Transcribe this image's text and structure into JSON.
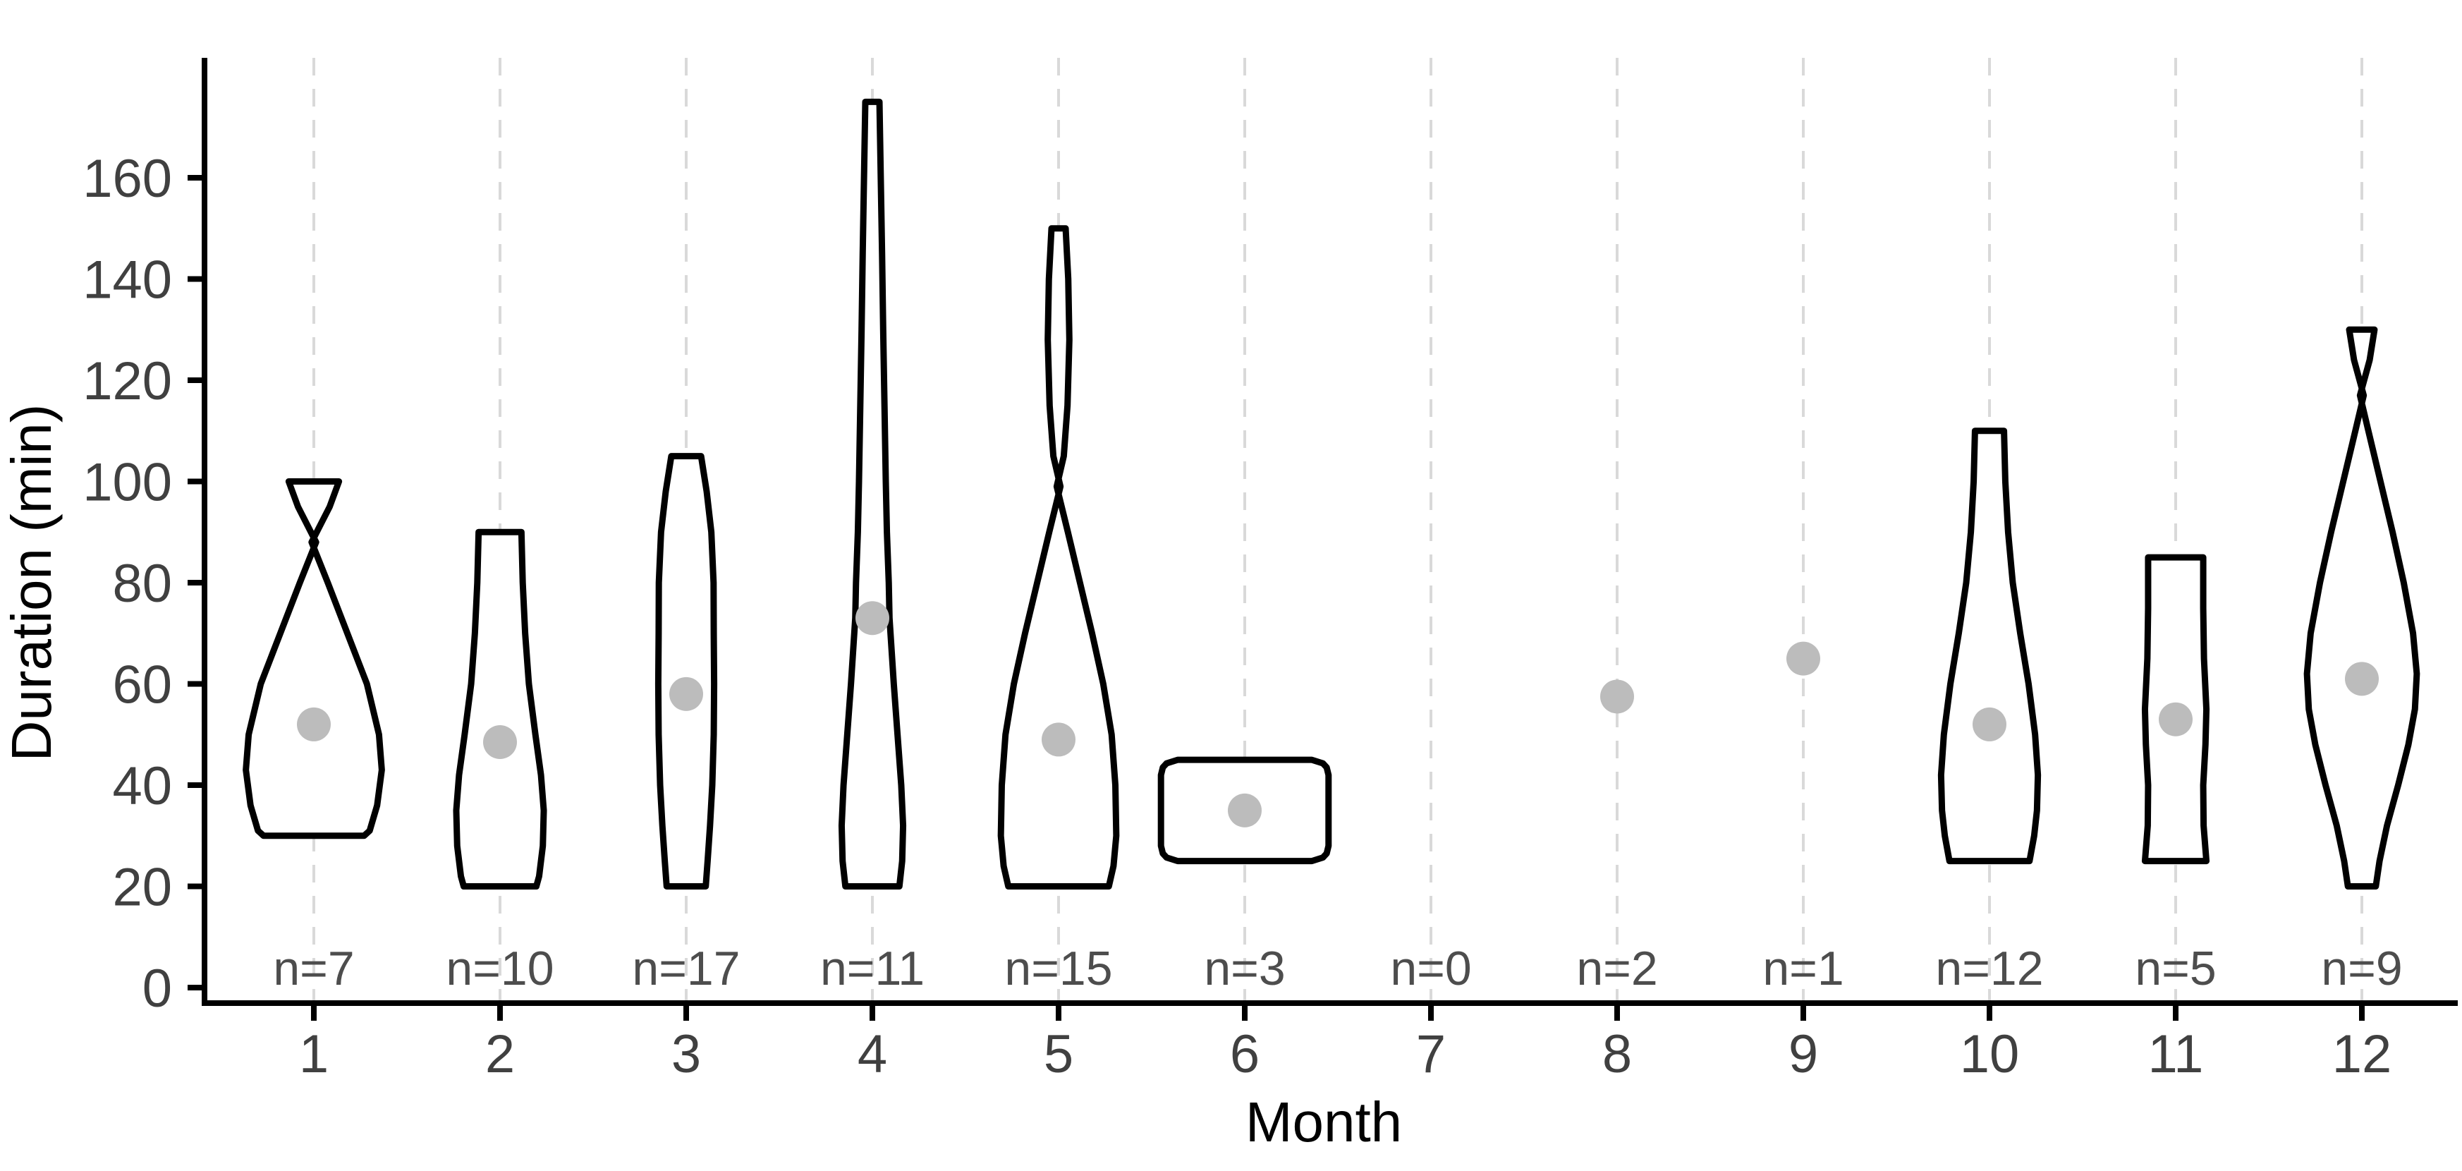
{
  "axes": {
    "y_title": "Duration (min)",
    "x_title": "Month",
    "y_tick_labels": [
      "0",
      "20",
      "40",
      "60",
      "80",
      "100",
      "120",
      "140",
      "160"
    ],
    "x_tick_labels": [
      "1",
      "2",
      "3",
      "4",
      "5",
      "6",
      "7",
      "8",
      "9",
      "10",
      "11",
      "12"
    ]
  },
  "colors": {
    "violin_stroke": "#000000",
    "violin_fill": "#ffffff",
    "mean_dot": "#bcbcbc",
    "gridline": "#d9d9d9",
    "axis_line": "#000000",
    "tick_label": "#404040",
    "n_label": "#4d4d4d",
    "axis_title": "#000000"
  },
  "chart_data": {
    "type": "violin",
    "title": "",
    "xlabel": "Month",
    "ylabel": "Duration (min)",
    "ylim": [
      -3.1,
      183.7
    ],
    "y_ticks": [
      0,
      20,
      40,
      60,
      80,
      100,
      120,
      140,
      160
    ],
    "grid": "vertical-dashed",
    "legend": "none",
    "months": [
      {
        "month": 1,
        "n": 7,
        "n_label": "n=7",
        "min": 30,
        "max": 100,
        "mean": 52,
        "profile": [
          [
            100,
            0.135
          ],
          [
            95,
            0.085
          ],
          [
            88,
            -0.012
          ],
          [
            80,
            0.075
          ],
          [
            70,
            0.18
          ],
          [
            60,
            0.285
          ],
          [
            50,
            0.35
          ],
          [
            43,
            0.365
          ],
          [
            36,
            0.34
          ],
          [
            31,
            0.3
          ],
          [
            30,
            0.27
          ]
        ]
      },
      {
        "month": 2,
        "n": 10,
        "n_label": "n=10",
        "min": 20,
        "max": 90,
        "mean": 48.5,
        "profile": [
          [
            90,
            0.115
          ],
          [
            80,
            0.122
          ],
          [
            70,
            0.135
          ],
          [
            60,
            0.155
          ],
          [
            50,
            0.19
          ],
          [
            42,
            0.22
          ],
          [
            35,
            0.235
          ],
          [
            28,
            0.23
          ],
          [
            22,
            0.21
          ],
          [
            20,
            0.195
          ]
        ]
      },
      {
        "month": 3,
        "n": 17,
        "n_label": "n=17",
        "min": 20,
        "max": 105,
        "mean": 58,
        "profile": [
          [
            105,
            0.08
          ],
          [
            98,
            0.11
          ],
          [
            90,
            0.135
          ],
          [
            80,
            0.147
          ],
          [
            70,
            0.148
          ],
          [
            60,
            0.15
          ],
          [
            50,
            0.148
          ],
          [
            40,
            0.14
          ],
          [
            32,
            0.128
          ],
          [
            25,
            0.115
          ],
          [
            20,
            0.105
          ]
        ]
      },
      {
        "month": 4,
        "n": 11,
        "n_label": "n=11",
        "min": 20,
        "max": 175,
        "mean": 73,
        "profile": [
          [
            175,
            0.038
          ],
          [
            160,
            0.045
          ],
          [
            145,
            0.052
          ],
          [
            130,
            0.058
          ],
          [
            115,
            0.065
          ],
          [
            100,
            0.072
          ],
          [
            90,
            0.078
          ],
          [
            80,
            0.088
          ],
          [
            73,
            0.092
          ],
          [
            60,
            0.115
          ],
          [
            50,
            0.135
          ],
          [
            40,
            0.155
          ],
          [
            32,
            0.165
          ],
          [
            25,
            0.16
          ],
          [
            20,
            0.145
          ]
        ]
      },
      {
        "month": 5,
        "n": 15,
        "n_label": "n=15",
        "min": 20,
        "max": 150,
        "mean": 49,
        "profile": [
          [
            150,
            0.038
          ],
          [
            140,
            0.052
          ],
          [
            128,
            0.058
          ],
          [
            115,
            0.048
          ],
          [
            105,
            0.028
          ],
          [
            99,
            -0.01
          ],
          [
            90,
            0.05
          ],
          [
            80,
            0.115
          ],
          [
            70,
            0.18
          ],
          [
            60,
            0.24
          ],
          [
            50,
            0.285
          ],
          [
            40,
            0.305
          ],
          [
            30,
            0.31
          ],
          [
            24,
            0.295
          ],
          [
            20,
            0.27
          ]
        ]
      },
      {
        "month": 6,
        "n": 3,
        "n_label": "n=3",
        "min": 25,
        "max": 45,
        "mean": 35,
        "profile": [
          [
            45,
            0.36
          ],
          [
            44.3,
            0.42
          ],
          [
            43.5,
            0.44
          ],
          [
            42,
            0.45
          ],
          [
            28,
            0.45
          ],
          [
            26.5,
            0.44
          ],
          [
            25.7,
            0.42
          ],
          [
            25,
            0.36
          ]
        ]
      },
      {
        "month": 7,
        "n": 0,
        "n_label": "n=0",
        "min": null,
        "max": null,
        "mean": null,
        "profile": []
      },
      {
        "month": 8,
        "n": 2,
        "n_label": "n=2",
        "min": null,
        "max": null,
        "mean": 57.5,
        "profile": []
      },
      {
        "month": 9,
        "n": 1,
        "n_label": "n=1",
        "min": null,
        "max": null,
        "mean": 65,
        "profile": []
      },
      {
        "month": 10,
        "n": 12,
        "n_label": "n=12",
        "min": 25,
        "max": 110,
        "mean": 52,
        "profile": [
          [
            110,
            0.078
          ],
          [
            100,
            0.085
          ],
          [
            90,
            0.1
          ],
          [
            80,
            0.125
          ],
          [
            70,
            0.165
          ],
          [
            60,
            0.21
          ],
          [
            50,
            0.245
          ],
          [
            42,
            0.26
          ],
          [
            35,
            0.255
          ],
          [
            30,
            0.24
          ],
          [
            25,
            0.215
          ]
        ]
      },
      {
        "month": 11,
        "n": 5,
        "n_label": "n=5",
        "min": 25,
        "max": 85,
        "mean": 53,
        "profile": [
          [
            85,
            0.148
          ],
          [
            75,
            0.148
          ],
          [
            65,
            0.152
          ],
          [
            55,
            0.165
          ],
          [
            48,
            0.16
          ],
          [
            40,
            0.148
          ],
          [
            32,
            0.15
          ],
          [
            25,
            0.165
          ]
        ]
      },
      {
        "month": 12,
        "n": 9,
        "n_label": "n=9",
        "min": 20,
        "max": 130,
        "mean": 61,
        "profile": [
          [
            130,
            0.068
          ],
          [
            124,
            0.042
          ],
          [
            117,
            -0.01
          ],
          [
            110,
            0.035
          ],
          [
            100,
            0.1
          ],
          [
            90,
            0.165
          ],
          [
            80,
            0.225
          ],
          [
            70,
            0.275
          ],
          [
            62,
            0.295
          ],
          [
            55,
            0.285
          ],
          [
            48,
            0.25
          ],
          [
            40,
            0.195
          ],
          [
            32,
            0.135
          ],
          [
            25,
            0.095
          ],
          [
            20,
            0.075
          ]
        ]
      }
    ]
  }
}
